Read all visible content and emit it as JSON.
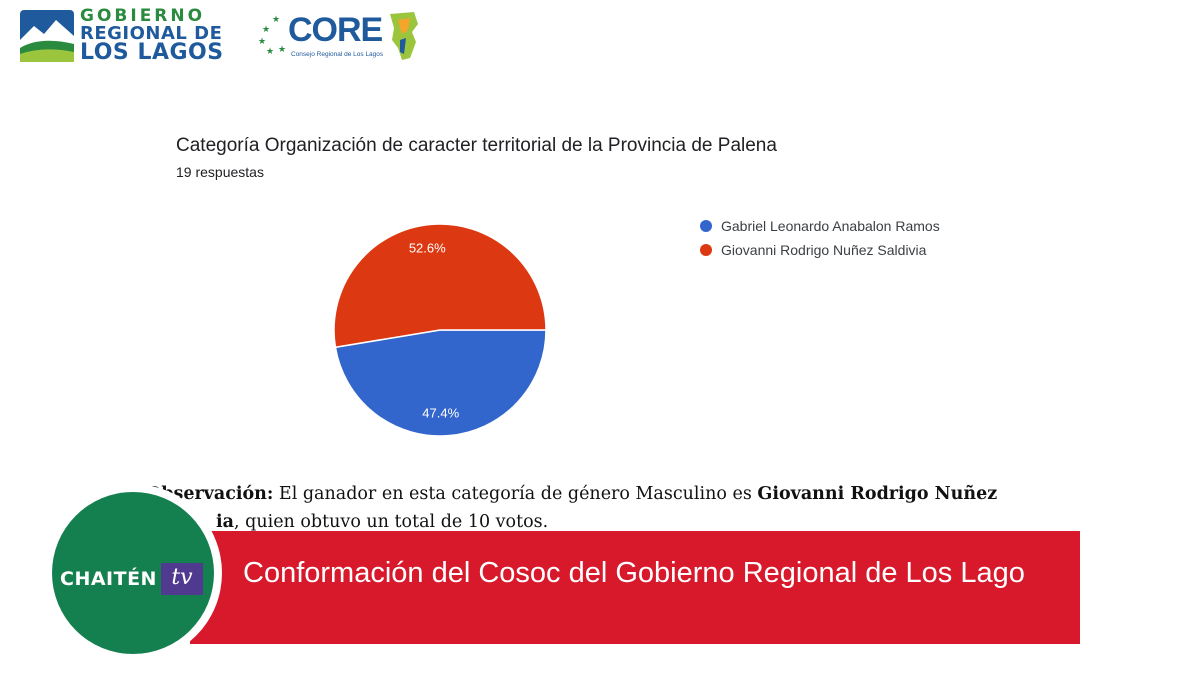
{
  "header": {
    "gobierno_logo": {
      "line1": "GOBIERNO",
      "line2": "REGIONAL DE",
      "line3": "LOS LAGOS"
    },
    "core_logo": {
      "word": "CORE",
      "subtitle": "Consejo Regional de Los Lagos"
    }
  },
  "question": {
    "title": "Categoría Organización de caracter territorial de la Provincia de Palena",
    "responses": "19 respuestas"
  },
  "chart_data": {
    "type": "pie",
    "title": "Categoría Organización de caracter territorial de la Provincia de Palena",
    "series": [
      {
        "name": "Gabriel Leonardo Anabalon Ramos",
        "value": 47.4,
        "label": "47.4%",
        "color": "#3366cc"
      },
      {
        "name": "Giovanni Rodrigo Nuñez Saldivia",
        "value": 52.6,
        "label": "52.6%",
        "color": "#dc3912"
      }
    ],
    "legend_position": "right"
  },
  "observation": {
    "label": "Observación:",
    "text1": " El ganador en esta categoría de género Masculino es ",
    "winner": "Giovanni Rodrigo Nuñez",
    "winner_tail": "ia",
    "text2": ", quien obtuvo un total de 10 votos."
  },
  "banner": {
    "headline": "Conformación del Cosoc del Gobierno Regional de Los Lago",
    "brand_word": "CHAITÉN",
    "brand_tv": "tv"
  },
  "colors": {
    "banner": "#d7192b",
    "brand_circle": "#15804f",
    "tv_box": "#4f3a8f"
  }
}
